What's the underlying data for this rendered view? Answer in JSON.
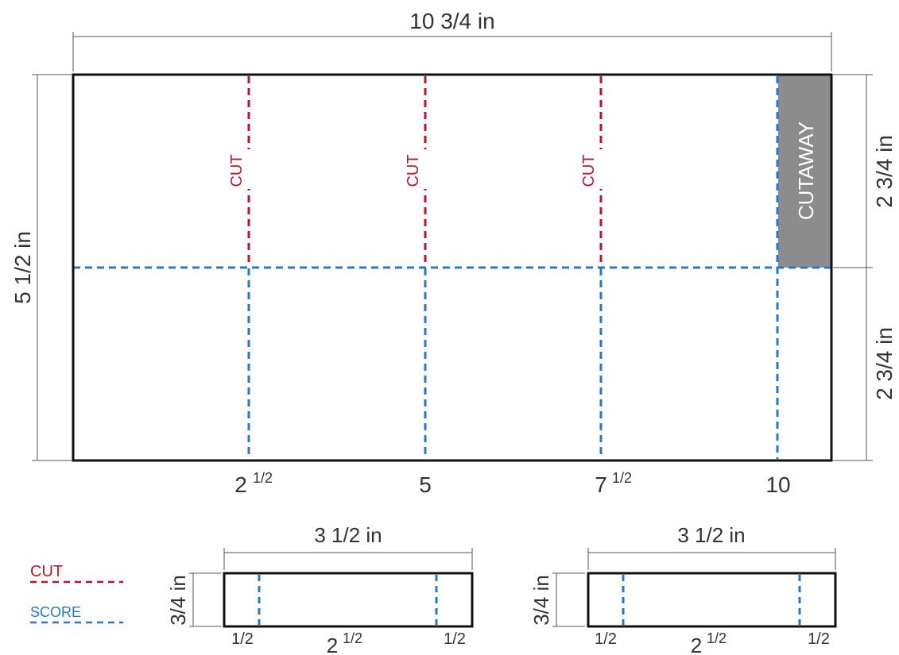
{
  "main_panel": {
    "width_label": "10 3/4 in",
    "height_label": "5 1/2 in",
    "upper_half_label": "2 3/4 in",
    "lower_half_label": "2 3/4 in",
    "cut_label": "CUT",
    "cutaway_label": "CUTAWAY",
    "ticks": [
      {
        "base": "2",
        "sup": "1/2"
      },
      {
        "base": "5",
        "sup": ""
      },
      {
        "base": "7",
        "sup": "1/2"
      },
      {
        "base": "10",
        "sup": ""
      }
    ]
  },
  "strips": [
    {
      "width_label": "3 1/2 in",
      "height_label": "3/4 in",
      "left_label": "1/2",
      "mid_base": "2",
      "mid_sup": "1/2",
      "right_label": "1/2"
    },
    {
      "width_label": "3 1/2 in",
      "height_label": "3/4 in",
      "left_label": "1/2",
      "mid_base": "2",
      "mid_sup": "1/2",
      "right_label": "1/2"
    }
  ],
  "legend": {
    "cut_label": "CUT",
    "score_label": "SCORE"
  },
  "colors": {
    "cut": "#b5182d",
    "score": "#2a78c4",
    "cutaway": "#8c8c8c",
    "outline": "#111111"
  }
}
